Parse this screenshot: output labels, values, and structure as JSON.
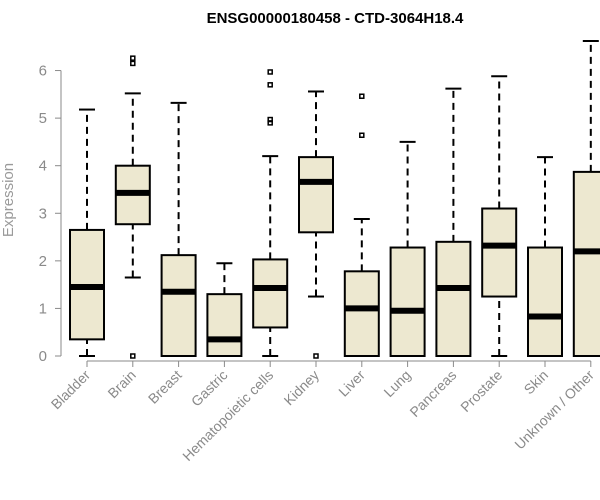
{
  "chart_data": {
    "type": "boxplot",
    "title": "ENSG00000180458 - CTD-3064H18.4",
    "xlabel": "",
    "ylabel": "Expression",
    "ylim": [
      0,
      6.6
    ],
    "yticks": [
      0,
      1,
      2,
      3,
      4,
      5,
      6
    ],
    "grid": false,
    "box_fill": "#ede8d0",
    "box_stroke": "#000000",
    "categories": [
      "Bladder",
      "Brain",
      "Breast",
      "Gastric",
      "Hematopoietic cells",
      "Kidney",
      "Liver",
      "Lung",
      "Pancreas",
      "Prostate",
      "Skin",
      "Unknown / Other"
    ],
    "boxes": [
      {
        "min": 0,
        "q1": 0.35,
        "median": 1.45,
        "q3": 2.65,
        "max": 5.18,
        "outliers": []
      },
      {
        "min": 1.65,
        "q1": 2.77,
        "median": 3.43,
        "q3": 4.0,
        "max": 5.52,
        "outliers": [
          6.26,
          6.15,
          0.0
        ]
      },
      {
        "min": 0,
        "q1": 0,
        "median": 1.35,
        "q3": 2.12,
        "max": 5.32,
        "outliers": []
      },
      {
        "min": 0,
        "q1": 0,
        "median": 0.35,
        "q3": 1.3,
        "max": 1.95,
        "outliers": []
      },
      {
        "min": 0,
        "q1": 0.6,
        "median": 1.43,
        "q3": 2.03,
        "max": 4.2,
        "outliers": [
          5.97,
          5.7,
          4.97,
          4.9
        ]
      },
      {
        "min": 1.25,
        "q1": 2.6,
        "median": 3.66,
        "q3": 4.18,
        "max": 5.56,
        "outliers": [
          0.0
        ]
      },
      {
        "min": 0,
        "q1": 0,
        "median": 1.0,
        "q3": 1.78,
        "max": 2.88,
        "outliers": [
          5.46,
          4.64
        ]
      },
      {
        "min": 0,
        "q1": 0,
        "median": 0.95,
        "q3": 2.28,
        "max": 4.5,
        "outliers": []
      },
      {
        "min": 0,
        "q1": 0,
        "median": 1.43,
        "q3": 2.4,
        "max": 5.62,
        "outliers": []
      },
      {
        "min": 0,
        "q1": 1.25,
        "median": 2.32,
        "q3": 3.1,
        "max": 5.88,
        "outliers": []
      },
      {
        "min": 0,
        "q1": 0,
        "median": 0.83,
        "q3": 2.28,
        "max": 4.18,
        "outliers": []
      },
      {
        "min": 0,
        "q1": 0,
        "median": 2.2,
        "q3": 3.87,
        "max": 6.62,
        "outliers": []
      }
    ]
  }
}
